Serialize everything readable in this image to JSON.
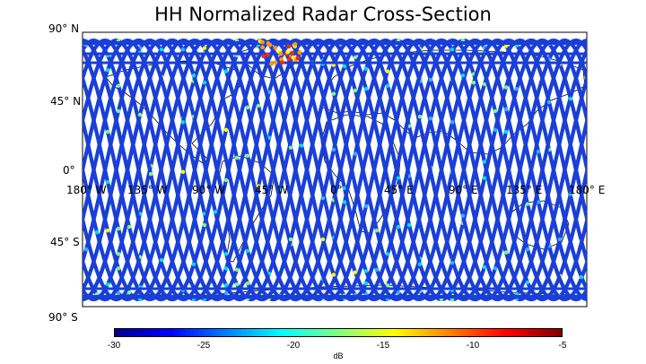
{
  "title": "HH Normalized Radar Cross-Section",
  "map": {
    "lat_labels": [
      "90° N",
      "45° N",
      "0°",
      "45° S",
      "90° S"
    ],
    "lon_labels": [
      "180° W",
      "135° W",
      "90° W",
      "45° W",
      "0°",
      "45° E",
      "90° E",
      "135° E",
      "180° E"
    ],
    "lat_ticks": [
      90,
      45,
      0,
      -45,
      -90
    ],
    "lon_ticks": [
      -180,
      -135,
      -90,
      -45,
      0,
      45,
      90,
      135,
      180
    ],
    "lat_range": [
      -90,
      90
    ],
    "lon_range": [
      -180,
      180
    ],
    "grid": false,
    "track_base_color": "#1a3fd8",
    "coast_color": "#000000"
  },
  "colorbar": {
    "label": "dB",
    "ticks": [
      "-30",
      "-25",
      "-20",
      "-15",
      "-10",
      "-5"
    ],
    "range": [
      -30,
      -5
    ],
    "colors": [
      "#00008f",
      "#0000ff",
      "#0080ff",
      "#00ffff",
      "#80ff80",
      "#ffff00",
      "#ff8000",
      "#ff0000",
      "#800000"
    ]
  }
}
